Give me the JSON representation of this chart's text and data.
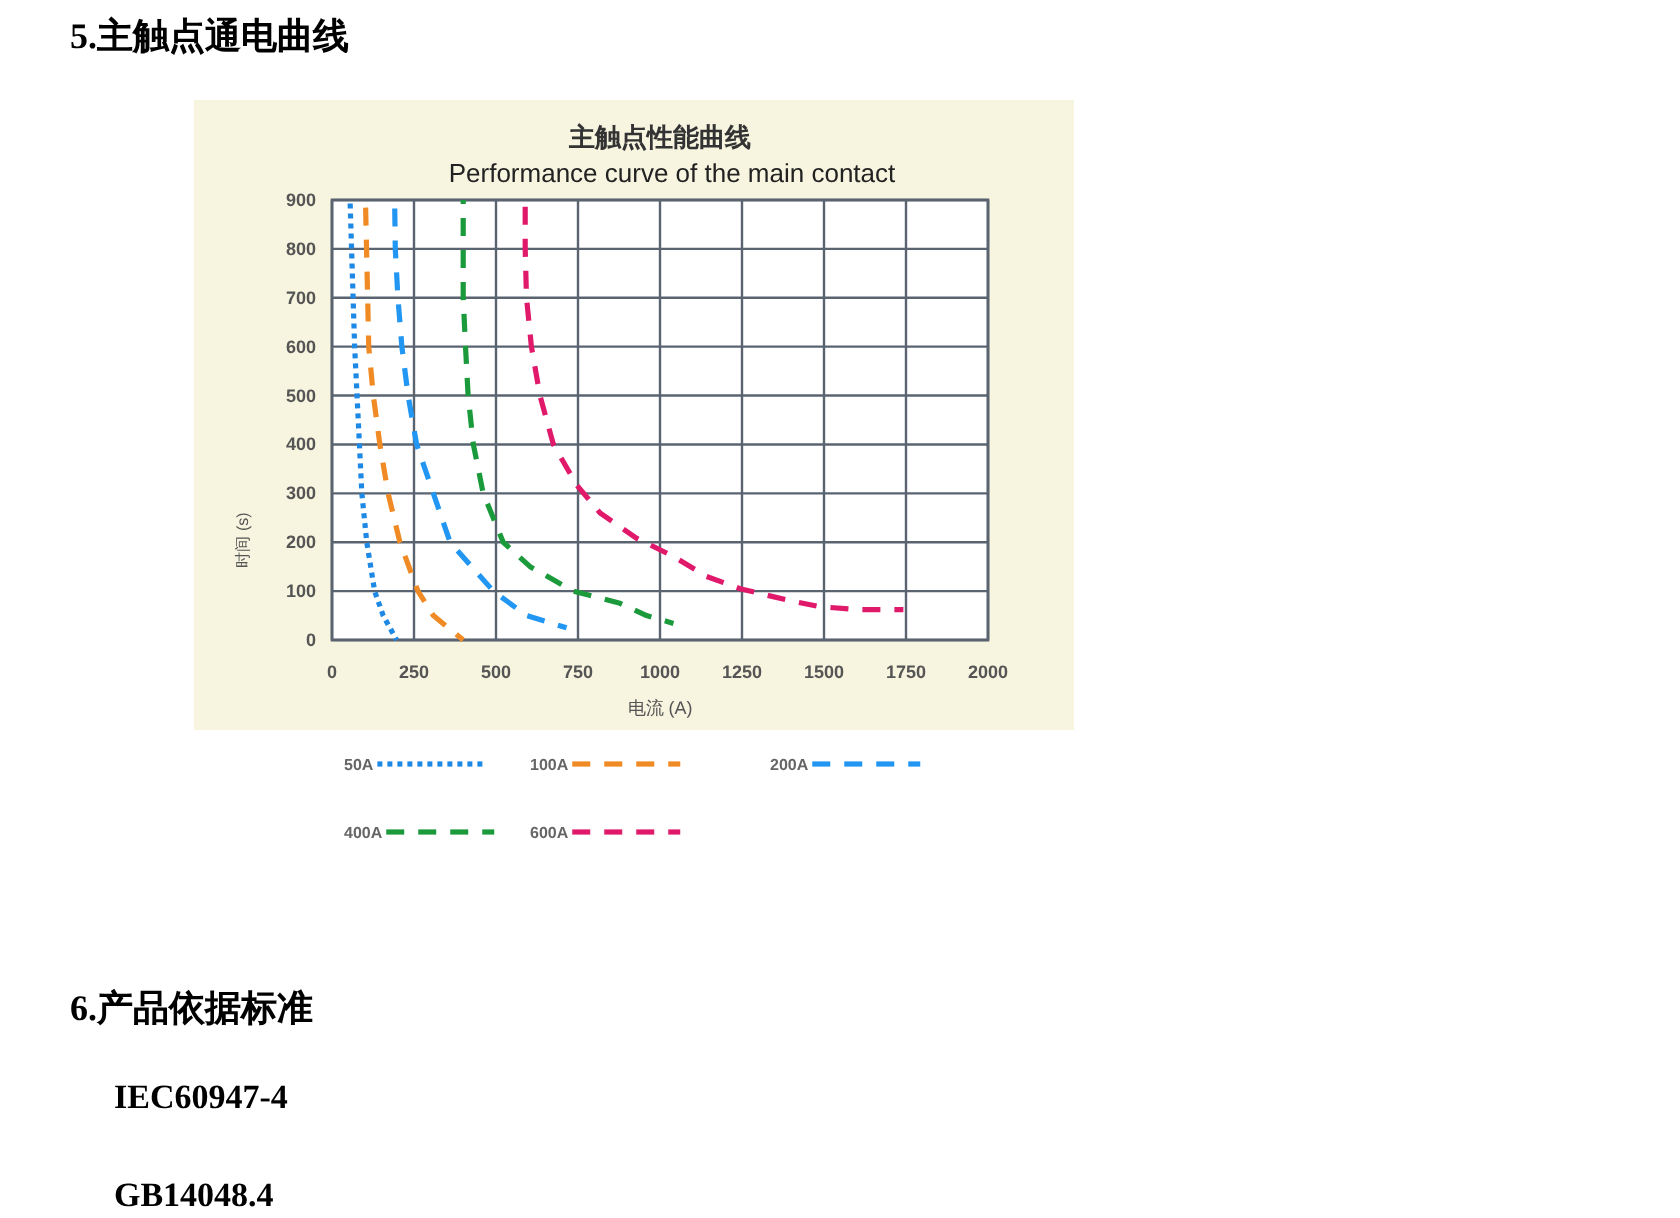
{
  "chart_data": {
    "type": "line",
    "title": "主触点性能曲线",
    "subtitle": "Performance curve of the main contact",
    "xlabel": "电流 (A)",
    "ylabel": "时间 (s)",
    "xlim": [
      0,
      2000
    ],
    "xticks": [
      0,
      250,
      500,
      750,
      1000,
      1250,
      1500,
      1750,
      2000
    ],
    "ylim": [
      0,
      900
    ],
    "yticks": [
      0,
      100,
      200,
      300,
      400,
      500,
      600,
      700,
      800,
      900
    ],
    "grid": true,
    "legend": "bottom",
    "marker": "none",
    "annotations": [
      "5.主触点通电曲线",
      "6.产品依据标准",
      "IEC60947-4",
      "GB14048.4"
    ],
    "series": [
      {
        "name": "50A",
        "color": "#1e88e5",
        "line_style": "dotted",
        "x": [
          55,
          69,
          91,
          106,
          130,
          156,
          197
        ],
        "values": [
          900,
          600,
          300,
          200,
          100,
          50,
          0
        ]
      },
      {
        "name": "100A",
        "color": "#f08a24",
        "line_style": "dashed",
        "x": [
          102,
          112,
          126,
          146,
          171,
          207,
          262,
          309,
          400
        ],
        "values": [
          900,
          600,
          500,
          400,
          300,
          200,
          100,
          50,
          0
        ]
      },
      {
        "name": "200A",
        "color": "#2196f3",
        "line_style": "dashed",
        "x": [
          191,
          193,
          201,
          213,
          232,
          258,
          309,
          360,
          492,
          593,
          715
        ],
        "values": [
          900,
          800,
          700,
          600,
          500,
          400,
          300,
          200,
          100,
          50,
          25
        ]
      },
      {
        "name": "400A",
        "color": "#1a9a3a",
        "line_style": "dashed",
        "x": [
          400,
          400,
          407,
          415,
          431,
          461,
          522,
          604,
          736,
          878,
          959,
          1041
        ],
        "values": [
          900,
          700,
          600,
          500,
          400,
          300,
          200,
          150,
          100,
          75,
          50,
          34
        ]
      },
      {
        "name": "600A",
        "color": "#e0196b",
        "line_style": "dashed",
        "x": [
          589,
          589,
          593,
          608,
          634,
          675,
          746,
          817,
          929,
          1041,
          1142,
          1244,
          1386,
          1488,
          1610,
          1742
        ],
        "values": [
          900,
          800,
          700,
          600,
          500,
          400,
          317,
          260,
          208,
          171,
          130,
          105,
          82,
          68,
          62,
          62
        ]
      }
    ]
  }
}
